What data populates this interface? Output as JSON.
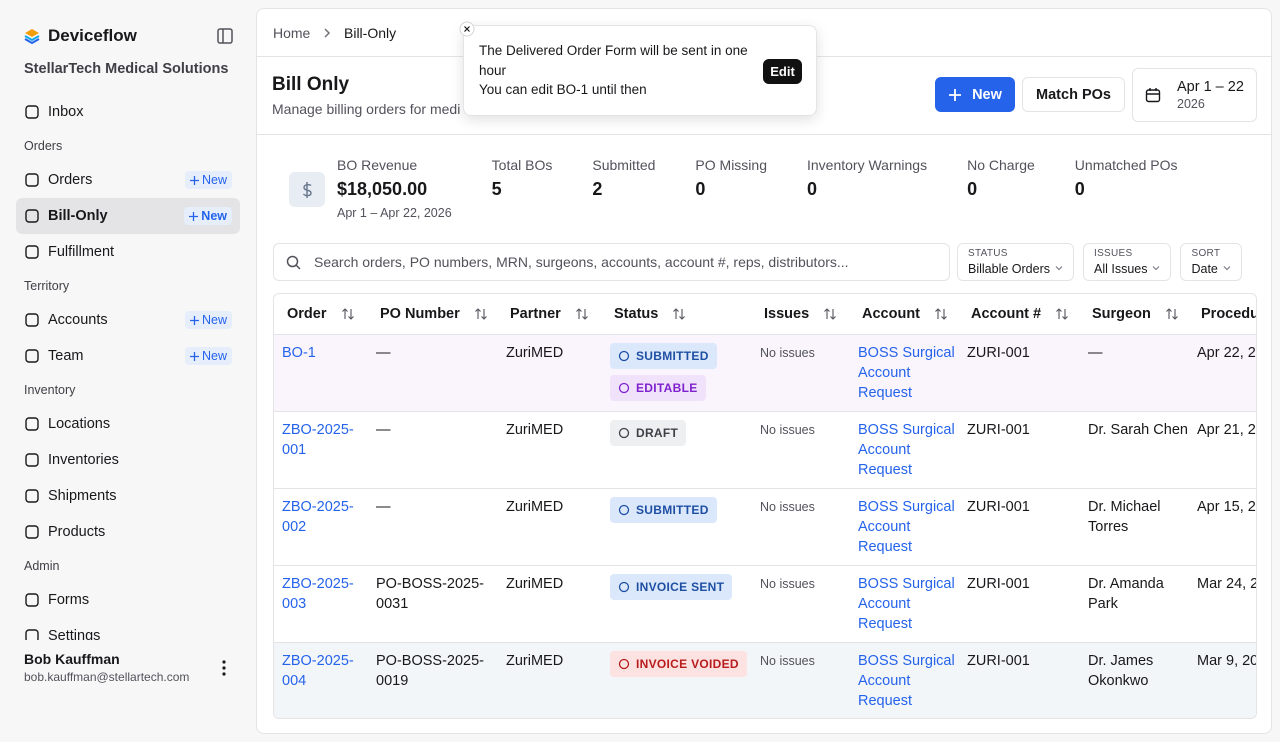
{
  "sidebar": {
    "brand": "Deviceflow",
    "org": "StellarTech Medical Solutions",
    "top": [
      {
        "label": "Inbox"
      }
    ],
    "groups": [
      {
        "title": "Orders",
        "items": [
          {
            "label": "Orders",
            "badge": "New"
          },
          {
            "label": "Bill-Only",
            "badge": "New",
            "selected": true
          },
          {
            "label": "Fulfillment"
          }
        ]
      },
      {
        "title": "Territory",
        "items": [
          {
            "label": "Accounts",
            "badge": "New"
          },
          {
            "label": "Team",
            "badge": "New"
          }
        ]
      },
      {
        "title": "Inventory",
        "items": [
          {
            "label": "Locations"
          },
          {
            "label": "Inventories"
          },
          {
            "label": "Shipments"
          },
          {
            "label": "Products"
          }
        ]
      },
      {
        "title": "Admin",
        "items": [
          {
            "label": "Forms"
          },
          {
            "label": "Settings"
          }
        ]
      }
    ],
    "user": {
      "name": "Bob Kauffman",
      "email": "bob.kauffman@stellartech.com"
    }
  },
  "breadcrumb": [
    "Home",
    "Bill-Only"
  ],
  "toast": {
    "line1": "The Delivered Order Form will be sent in one hour",
    "line2": "You can edit BO-1 until then",
    "action": "Edit"
  },
  "header": {
    "title": "Bill Only",
    "subtitle": "Manage billing orders for medi",
    "new": "New",
    "match": "Match POs",
    "date": "Apr 1 – 22",
    "year": "2026"
  },
  "stats": [
    {
      "label": "BO Revenue",
      "value": "$18,050.00",
      "sub": "Apr 1 – Apr 22, 2026"
    },
    {
      "label": "Total BOs",
      "value": "5"
    },
    {
      "label": "Submitted",
      "value": "2"
    },
    {
      "label": "PO Missing",
      "value": "0"
    },
    {
      "label": "Inventory Warnings",
      "value": "0"
    },
    {
      "label": "No Charge",
      "value": "0"
    },
    {
      "label": "Unmatched POs",
      "value": "0"
    }
  ],
  "search": {
    "placeholder": "Search orders, PO numbers, MRN, surgeons, accounts, account #, reps, distributors..."
  },
  "filters": [
    {
      "label": "STATUS",
      "value": "Billable Orders"
    },
    {
      "label": "ISSUES",
      "value": "All Issues"
    },
    {
      "label": "SORT",
      "value": "Date"
    }
  ],
  "table": {
    "columns": [
      "Order",
      "PO Number",
      "Partner",
      "Status",
      "Issues",
      "Account",
      "Account #",
      "Surgeon",
      "Procedur"
    ],
    "rows": [
      {
        "order": "BO-1",
        "po": "—",
        "partner": "ZuriMED",
        "status": [
          {
            "label": "SUBMITTED",
            "color": "#1e4fa3",
            "background": "#dbe8fb"
          },
          {
            "label": "EDITABLE",
            "color": "#7e22ce",
            "background": "#f1e2fb"
          }
        ],
        "issues": "No issues",
        "account": "BOSS Surgical Account Request",
        "account_no": "ZURI-001",
        "surgeon": "—",
        "procedure": "Apr 22, 2",
        "background": "#faf5fd"
      },
      {
        "order": "ZBO-2025-001",
        "po": "—",
        "partner": "ZuriMED",
        "status": [
          {
            "label": "DRAFT",
            "color": "#3f3f46",
            "background": "#eeeff1"
          }
        ],
        "issues": "No issues",
        "account": "BOSS Surgical Account Request",
        "account_no": "ZURI-001",
        "surgeon": "Dr. Sarah Chen",
        "procedure": "Apr 21, 2",
        "background": "#ffffff"
      },
      {
        "order": "ZBO-2025-002",
        "po": "—",
        "partner": "ZuriMED",
        "status": [
          {
            "label": "SUBMITTED",
            "color": "#1e4fa3",
            "background": "#dbe8fb"
          }
        ],
        "issues": "No issues",
        "account": "BOSS Surgical Account Request",
        "account_no": "ZURI-001",
        "surgeon": "Dr. Michael Torres",
        "procedure": "Apr 15, 2",
        "background": "#ffffff"
      },
      {
        "order": "ZBO-2025-003",
        "po": "PO-BOSS-2025-0031",
        "partner": "ZuriMED",
        "status": [
          {
            "label": "INVOICE SENT",
            "color": "#1e4fa3",
            "background": "#dbe8fb"
          }
        ],
        "issues": "No issues",
        "account": "BOSS Surgical Account Request",
        "account_no": "ZURI-001",
        "surgeon": "Dr. Amanda Park",
        "procedure": "Mar 24, 2",
        "background": "#ffffff"
      },
      {
        "order": "ZBO-2025-004",
        "po": "PO-BOSS-2025-0019",
        "partner": "ZuriMED",
        "status": [
          {
            "label": "INVOICE VOIDED",
            "color": "#b91c1c",
            "background": "#fde2e2"
          }
        ],
        "issues": "No issues",
        "account": "BOSS Surgical Account Request",
        "account_no": "ZURI-001",
        "surgeon": "Dr. James Okonkwo",
        "procedure": "Mar 9, 20",
        "background": "#f3f6f9"
      }
    ]
  }
}
